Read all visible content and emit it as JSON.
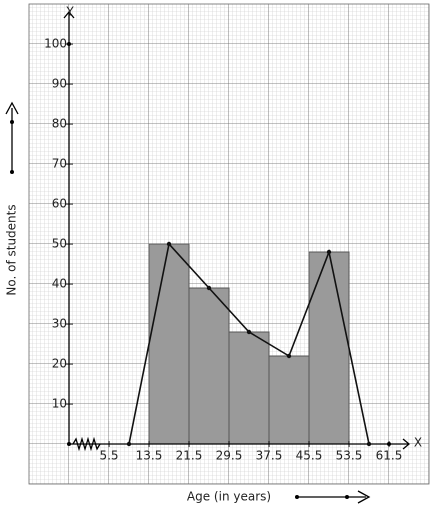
{
  "chart_data": {
    "type": "histogram",
    "x_label": "Age (in years)",
    "y_label": "No. of students",
    "x_axis_name": "X",
    "y_axis_name": "Y",
    "bins": [
      13.5,
      21.5,
      29.5,
      37.5,
      45.5,
      53.5
    ],
    "counts": [
      50,
      39,
      28,
      22,
      48
    ],
    "color": "#9a9a9a",
    "polygon": {
      "x": [
        9.5,
        17.5,
        25.5,
        33.5,
        41.5,
        49.5,
        57.5
      ],
      "values": [
        0,
        50,
        39,
        28,
        22,
        48,
        0
      ],
      "color": "#111111"
    },
    "xlim": [
      -2.5,
      65.5
    ],
    "ylim": [
      0,
      108
    ],
    "xticks": [
      5.5,
      13.5,
      21.5,
      29.5,
      37.5,
      45.5,
      53.5,
      61.5
    ],
    "yticks": [
      10,
      20,
      30,
      40,
      50,
      60,
      70,
      80,
      90,
      100
    ],
    "grid": true
  }
}
